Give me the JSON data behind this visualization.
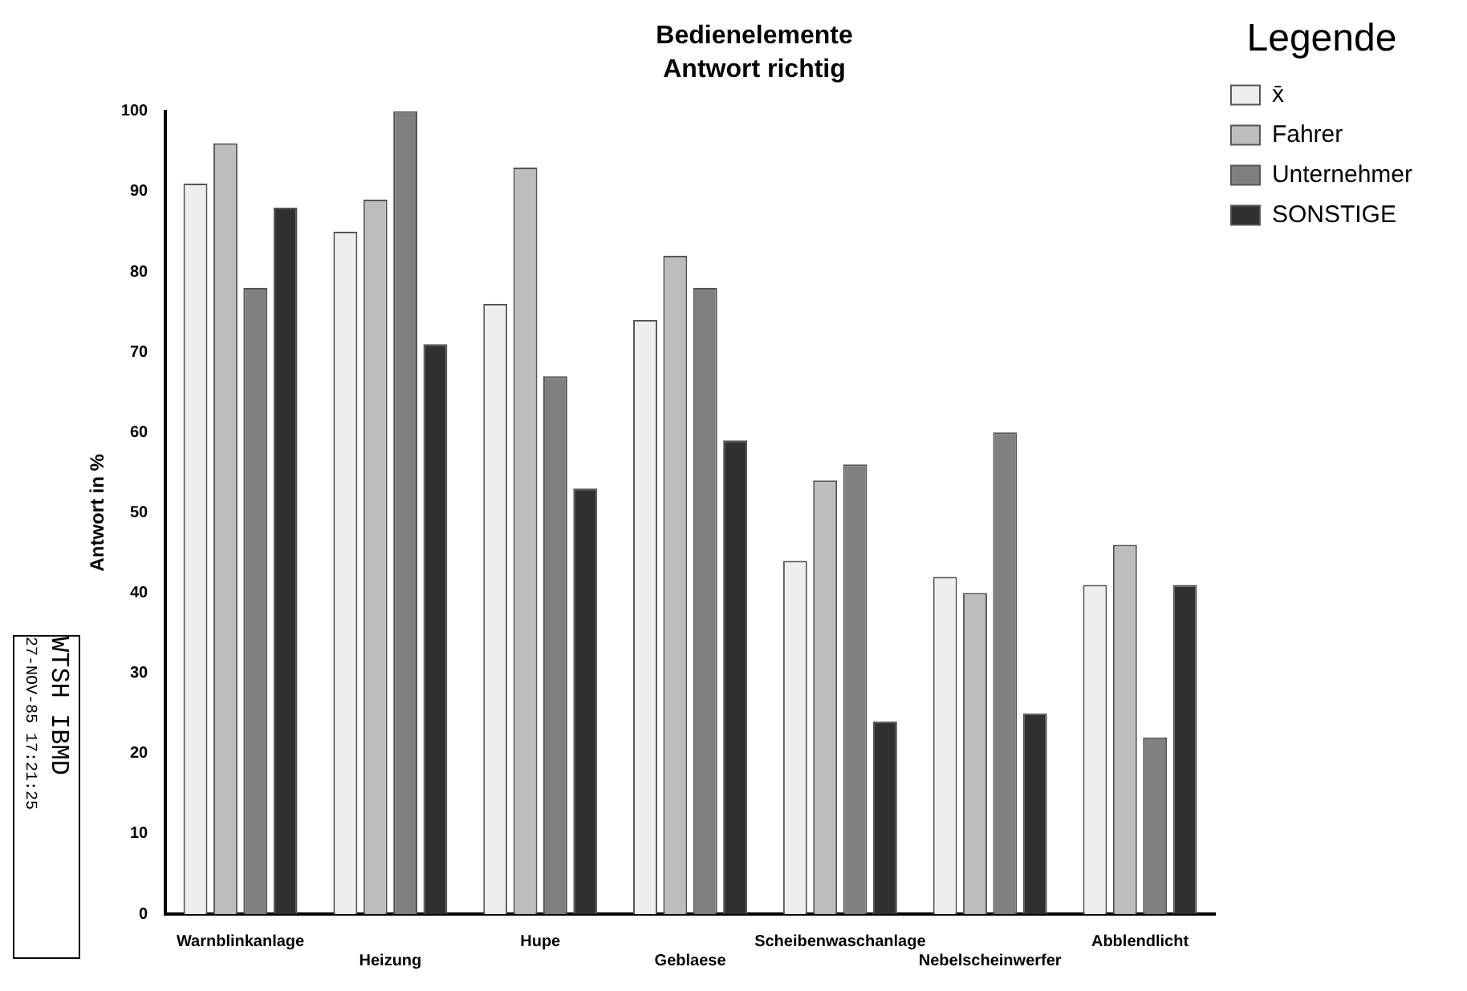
{
  "chart_data": {
    "type": "bar",
    "title": "Bedienelemente",
    "subtitle": "Antwort richtig",
    "ylabel": "Antwort in %",
    "legend_title": "Legende",
    "legend": "right",
    "grid": false,
    "categories": [
      "Warnblinkanlage",
      "Heizung",
      "Hupe",
      "Geblaese",
      "Scheibenwaschanlage",
      "Nebelscheinwerfer",
      "Abblendlicht"
    ],
    "series": [
      {
        "name": "x̄",
        "color": "#eeeeee",
        "values": [
          91,
          85,
          76,
          74,
          44,
          42,
          41
        ]
      },
      {
        "name": "Fahrer",
        "color": "#bdbdbd",
        "values": [
          96,
          89,
          93,
          82,
          54,
          40,
          46
        ]
      },
      {
        "name": "Unternehmer",
        "color": "#808080",
        "values": [
          78,
          100,
          67,
          78,
          56,
          60,
          22
        ]
      },
      {
        "name": "SONSTIGE",
        "color": "#303030",
        "values": [
          88,
          71,
          53,
          59,
          24,
          25,
          41
        ]
      }
    ],
    "ylim": [
      0,
      100
    ],
    "yticks": [
      0,
      10,
      20,
      30,
      40,
      50,
      60,
      70,
      80,
      90,
      100
    ],
    "annotations": [
      "WTSH IBMD",
      "27-NOV-85 17:21:25"
    ]
  }
}
